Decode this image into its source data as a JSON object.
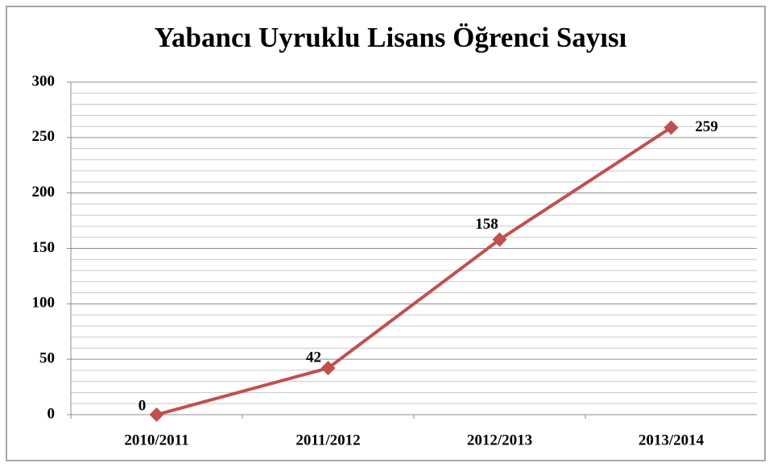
{
  "chart_data": {
    "type": "line",
    "title": "Yabancı Uyruklu Lisans Öğrenci Sayısı",
    "categories": [
      "2010/2011",
      "2011/2012",
      "2012/2013",
      "2013/2014"
    ],
    "values": [
      0,
      42,
      158,
      259
    ],
    "color": "#c0504d",
    "ylim": [
      0,
      300
    ],
    "yticks": [
      0,
      50,
      100,
      150,
      200,
      250,
      300
    ],
    "yminor": [
      10,
      20,
      30,
      40,
      60,
      70,
      80,
      90,
      110,
      120,
      130,
      140,
      160,
      170,
      180,
      190,
      210,
      220,
      230,
      240,
      260,
      270,
      280,
      290
    ],
    "grid": true
  }
}
